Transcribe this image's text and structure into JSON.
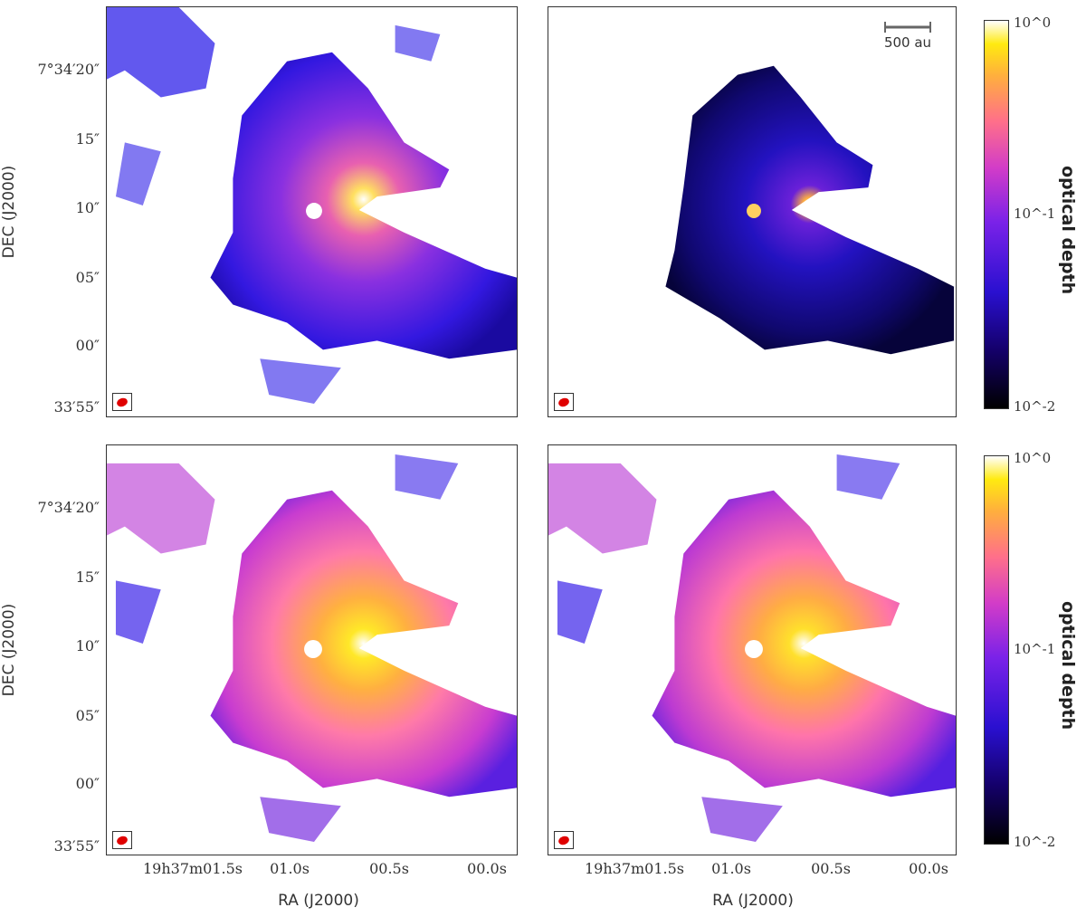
{
  "panels": [
    {
      "id": "top-left",
      "intensity": 0.55
    },
    {
      "id": "top-right",
      "intensity": 0.25
    },
    {
      "id": "bottom-left",
      "intensity": 0.95
    },
    {
      "id": "bottom-right",
      "intensity": 0.9
    }
  ],
  "axes": {
    "y_title": "DEC (J2000)",
    "x_title": "RA (J2000)",
    "y_ticks": [
      "7°34′20″",
      "15″",
      "10″",
      "05″",
      "00″",
      "33′55″"
    ],
    "x_ticks": [
      "19h37m01.5s",
      "01.0s",
      "00.5s",
      "00.0s"
    ]
  },
  "scalebar": {
    "label": "500 au"
  },
  "colorbar": {
    "title": "optical depth",
    "scale": "log",
    "ticks": [
      "10^0",
      "10^-1",
      "10^-2"
    ],
    "range": [
      0.01,
      1
    ]
  },
  "colors": {
    "beam": "#e00000",
    "frame": "#333333"
  }
}
